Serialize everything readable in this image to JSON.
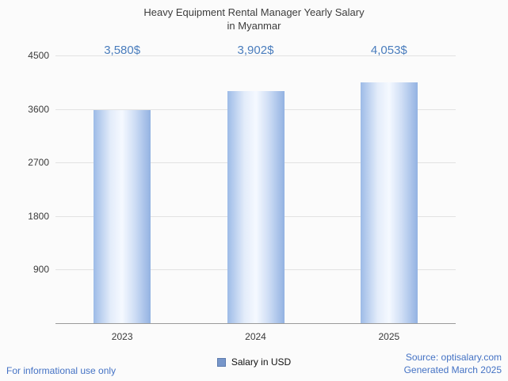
{
  "title": "Heavy Equipment Rental Manager Yearly Salary\nin Myanmar",
  "chart_data": {
    "type": "bar",
    "title": "Heavy Equipment Rental Manager Yearly Salary in Myanmar",
    "categories": [
      "2023",
      "2024",
      "2025"
    ],
    "values": [
      3580,
      3902,
      4053
    ],
    "value_labels": [
      "3,580$",
      "3,902$",
      "4,053$"
    ],
    "series_name": "Salary in USD",
    "xlabel": "",
    "ylabel": "",
    "ylim": [
      0,
      4500
    ],
    "yticks": [
      900,
      1800,
      2700,
      3600,
      4500
    ],
    "grid": true,
    "legend_position": "bottom",
    "bar_gradient": [
      "#9dbbe7",
      "#e3ecfa",
      "#f5f9ff",
      "#cfdef5",
      "#93b2e2"
    ],
    "value_label_color": "#4a7dbd",
    "gridline_color": "#e2e2e2",
    "axis_color": "#9a9a9a"
  },
  "legend": {
    "label": "Salary in USD",
    "swatch_color": "#7796ca",
    "swatch_border": "#5d7cae"
  },
  "footer": {
    "left": "For informational use only",
    "source": "Source: optisalary.com",
    "generated": "Generated March 2025",
    "color": "#4472c4"
  }
}
